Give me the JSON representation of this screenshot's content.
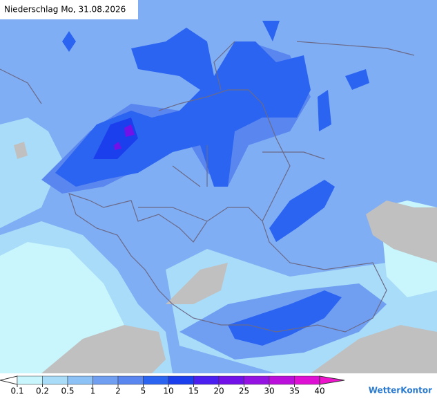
{
  "header": {
    "title": "Niederschlag Mo, 31.08.2026"
  },
  "legend": {
    "ticks": [
      0.1,
      0.2,
      0.5,
      1,
      2,
      5,
      10,
      15,
      20,
      25,
      30,
      35,
      40
    ],
    "colors": [
      "#c8f6fc",
      "#a9dcf8",
      "#8cc2f6",
      "#709ff2",
      "#5a86ef",
      "#2c64f2",
      "#1c3fee",
      "#4a1ff0",
      "#7212e8",
      "#9412e2",
      "#bb10dc",
      "#dd10d4"
    ],
    "under_color": "#ffffff",
    "over_color": "#ee14cc"
  },
  "brand": "WetterKontor"
}
